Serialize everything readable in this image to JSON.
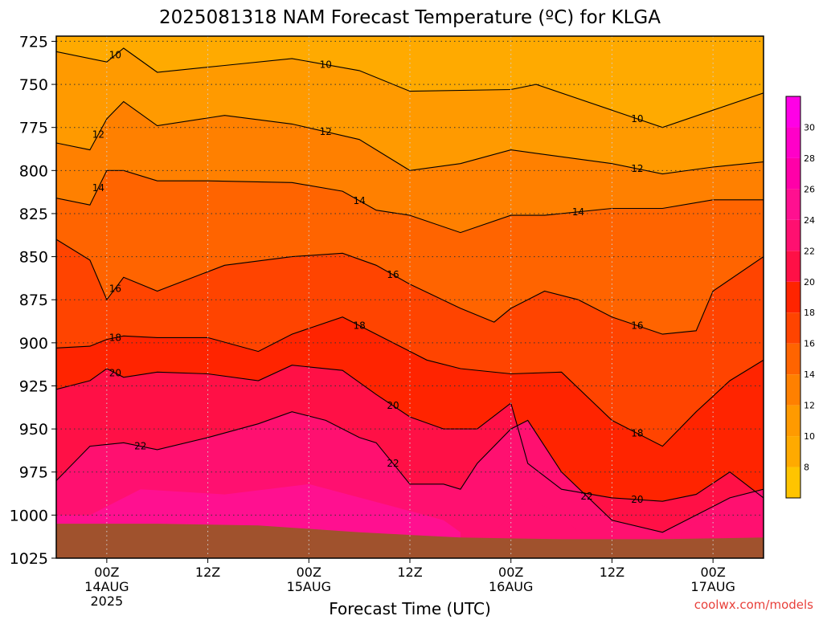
{
  "chart_data": {
    "type": "heatmap",
    "title": "2025081318 NAM Forecast Temperature (ºC) for KLGA",
    "xlabel": "Forecast Time (UTC)",
    "ylabel": "",
    "credit": "coolwx.com/models",
    "x_ticks": [
      {
        "hours": 6,
        "label": "00Z",
        "sub": [
          "14AUG",
          "2025"
        ]
      },
      {
        "hours": 18,
        "label": "12Z",
        "sub": []
      },
      {
        "hours": 30,
        "label": "00Z",
        "sub": [
          "15AUG"
        ]
      },
      {
        "hours": 42,
        "label": "12Z",
        "sub": []
      },
      {
        "hours": 54,
        "label": "00Z",
        "sub": [
          "16AUG"
        ]
      },
      {
        "hours": 66,
        "label": "12Z",
        "sub": []
      },
      {
        "hours": 78,
        "label": "00Z",
        "sub": [
          "17AUG"
        ]
      }
    ],
    "xlim_hours": [
      0,
      84
    ],
    "y_ticks": [
      725,
      750,
      775,
      800,
      825,
      850,
      875,
      900,
      925,
      950,
      975,
      1000,
      1025
    ],
    "ylim_hPa": [
      722,
      1025
    ],
    "colorbar": {
      "labels": [
        8,
        10,
        12,
        14,
        16,
        18,
        20,
        22,
        24,
        26,
        28,
        30
      ],
      "bins": [
        {
          "min": 6,
          "max": 8,
          "color": "#FFC400"
        },
        {
          "min": 8,
          "max": 10,
          "color": "#FFAA00"
        },
        {
          "min": 10,
          "max": 12,
          "color": "#FF9A00"
        },
        {
          "min": 12,
          "max": 14,
          "color": "#FF8000"
        },
        {
          "min": 14,
          "max": 16,
          "color": "#FF6400"
        },
        {
          "min": 16,
          "max": 18,
          "color": "#FF4400"
        },
        {
          "min": 18,
          "max": 20,
          "color": "#FF2400"
        },
        {
          "min": 20,
          "max": 22,
          "color": "#FF1046"
        },
        {
          "min": 22,
          "max": 24,
          "color": "#FF1070"
        },
        {
          "min": 24,
          "max": 26,
          "color": "#FF1090"
        },
        {
          "min": 26,
          "max": 28,
          "color": "#FF00A8"
        },
        {
          "min": 28,
          "max": 30,
          "color": "#FF00C8"
        },
        {
          "min": 30,
          "max": 32,
          "color": "#FF00E6"
        }
      ]
    },
    "ground_color": "#A0522D",
    "surface_pressure_hPa": [
      {
        "h": 0,
        "p": 1005
      },
      {
        "h": 12,
        "p": 1005
      },
      {
        "h": 24,
        "p": 1006
      },
      {
        "h": 36,
        "p": 1010
      },
      {
        "h": 48,
        "p": 1013
      },
      {
        "h": 60,
        "p": 1014
      },
      {
        "h": 72,
        "p": 1014
      },
      {
        "h": 84,
        "p": 1013
      }
    ],
    "isotherms": [
      {
        "temp": 10,
        "points": [
          [
            0,
            731
          ],
          [
            6,
            737
          ],
          [
            8,
            729
          ],
          [
            12,
            743
          ],
          [
            20,
            739
          ],
          [
            28,
            735
          ],
          [
            36,
            742
          ],
          [
            42,
            754
          ],
          [
            54,
            753
          ],
          [
            57,
            750
          ],
          [
            66,
            765
          ],
          [
            72,
            775
          ],
          [
            78,
            765
          ],
          [
            84,
            755
          ]
        ]
      },
      {
        "temp": 12,
        "points": [
          [
            0,
            784
          ],
          [
            4,
            788
          ],
          [
            6,
            770
          ],
          [
            8,
            760
          ],
          [
            12,
            774
          ],
          [
            20,
            768
          ],
          [
            28,
            773
          ],
          [
            36,
            782
          ],
          [
            42,
            800
          ],
          [
            48,
            796
          ],
          [
            54,
            788
          ],
          [
            57,
            790
          ],
          [
            66,
            796
          ],
          [
            72,
            802
          ],
          [
            78,
            798
          ],
          [
            84,
            795
          ]
        ]
      },
      {
        "temp": 14,
        "points": [
          [
            0,
            816
          ],
          [
            4,
            820
          ],
          [
            6,
            800
          ],
          [
            8,
            800
          ],
          [
            12,
            806
          ],
          [
            18,
            806
          ],
          [
            28,
            807
          ],
          [
            34,
            812
          ],
          [
            38,
            823
          ],
          [
            42,
            826
          ],
          [
            48,
            836
          ],
          [
            54,
            826
          ],
          [
            58,
            826
          ],
          [
            66,
            822
          ],
          [
            72,
            822
          ],
          [
            78,
            817
          ],
          [
            84,
            817
          ]
        ]
      },
      {
        "temp": 16,
        "points": [
          [
            0,
            840
          ],
          [
            4,
            852
          ],
          [
            6,
            875
          ],
          [
            8,
            862
          ],
          [
            12,
            870
          ],
          [
            20,
            855
          ],
          [
            28,
            850
          ],
          [
            34,
            848
          ],
          [
            38,
            855
          ],
          [
            42,
            866
          ],
          [
            48,
            880
          ],
          [
            52,
            888
          ],
          [
            54,
            880
          ],
          [
            58,
            870
          ],
          [
            62,
            875
          ],
          [
            66,
            885
          ],
          [
            72,
            895
          ],
          [
            76,
            893
          ],
          [
            78,
            870
          ],
          [
            84,
            850
          ]
        ]
      },
      {
        "temp": 18,
        "points": [
          [
            0,
            903
          ],
          [
            4,
            902
          ],
          [
            6,
            898
          ],
          [
            8,
            896
          ],
          [
            12,
            897
          ],
          [
            18,
            897
          ],
          [
            24,
            905
          ],
          [
            28,
            895
          ],
          [
            34,
            885
          ],
          [
            38,
            895
          ],
          [
            44,
            910
          ],
          [
            48,
            915
          ],
          [
            54,
            918
          ],
          [
            60,
            917
          ],
          [
            66,
            945
          ],
          [
            72,
            960
          ],
          [
            76,
            940
          ],
          [
            80,
            922
          ],
          [
            84,
            910
          ]
        ]
      },
      {
        "temp": 20,
        "points": [
          [
            0,
            927
          ],
          [
            4,
            922
          ],
          [
            6,
            915
          ],
          [
            8,
            920
          ],
          [
            12,
            917
          ],
          [
            18,
            918
          ],
          [
            24,
            922
          ],
          [
            28,
            913
          ],
          [
            34,
            916
          ],
          [
            38,
            930
          ],
          [
            42,
            943
          ],
          [
            46,
            950
          ],
          [
            50,
            950
          ],
          [
            54,
            935
          ],
          [
            56,
            970
          ],
          [
            60,
            985
          ],
          [
            66,
            990
          ],
          [
            72,
            992
          ],
          [
            76,
            988
          ],
          [
            80,
            975
          ],
          [
            84,
            990
          ]
        ]
      },
      {
        "temp": 22,
        "points": [
          [
            0,
            980
          ],
          [
            4,
            960
          ],
          [
            8,
            958
          ],
          [
            12,
            962
          ],
          [
            18,
            955
          ],
          [
            24,
            947
          ],
          [
            28,
            940
          ],
          [
            32,
            945
          ],
          [
            36,
            955
          ],
          [
            38,
            958
          ],
          [
            42,
            982
          ],
          [
            46,
            982
          ],
          [
            48,
            985
          ],
          [
            50,
            970
          ],
          [
            54,
            950
          ],
          [
            56,
            945
          ],
          [
            60,
            975
          ],
          [
            66,
            1003
          ],
          [
            72,
            1010
          ],
          [
            76,
            1000
          ],
          [
            80,
            990
          ],
          [
            84,
            985
          ]
        ]
      }
    ]
  }
}
